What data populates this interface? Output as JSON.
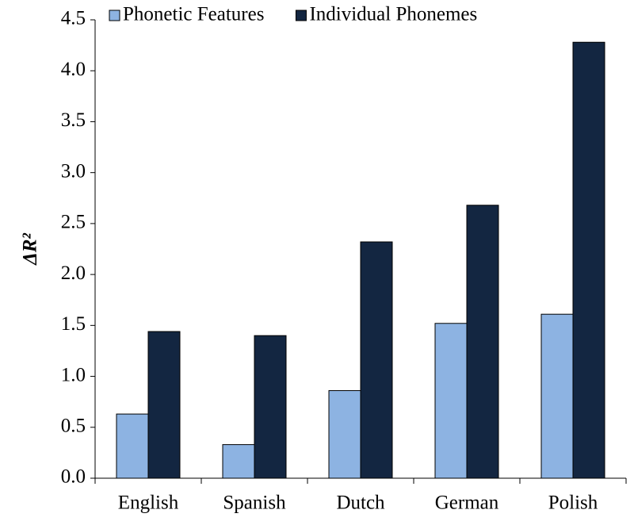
{
  "chart_data": {
    "type": "bar",
    "ylabel": "ΔR²",
    "categories": [
      "English",
      "Spanish",
      "Dutch",
      "German",
      "Polish"
    ],
    "series": [
      {
        "name": "Phonetic Features",
        "color": "#8db3e2",
        "values": [
          0.63,
          0.33,
          0.86,
          1.52,
          1.61
        ]
      },
      {
        "name": "Individual Phonemes",
        "color": "#132641",
        "values": [
          1.44,
          1.4,
          2.32,
          2.68,
          4.28
        ]
      }
    ],
    "ylim": [
      0,
      4.5
    ],
    "yticks": [
      {
        "value": 0,
        "label": "0.0"
      },
      0.5,
      {
        "value": 1,
        "label": "1.0"
      },
      1.5,
      {
        "value": 2,
        "label": "2.0"
      },
      2.5,
      {
        "value": 3,
        "label": "3.0"
      },
      3.5,
      {
        "value": 4,
        "label": "4.0"
      },
      4.5
    ],
    "grid": false
  }
}
